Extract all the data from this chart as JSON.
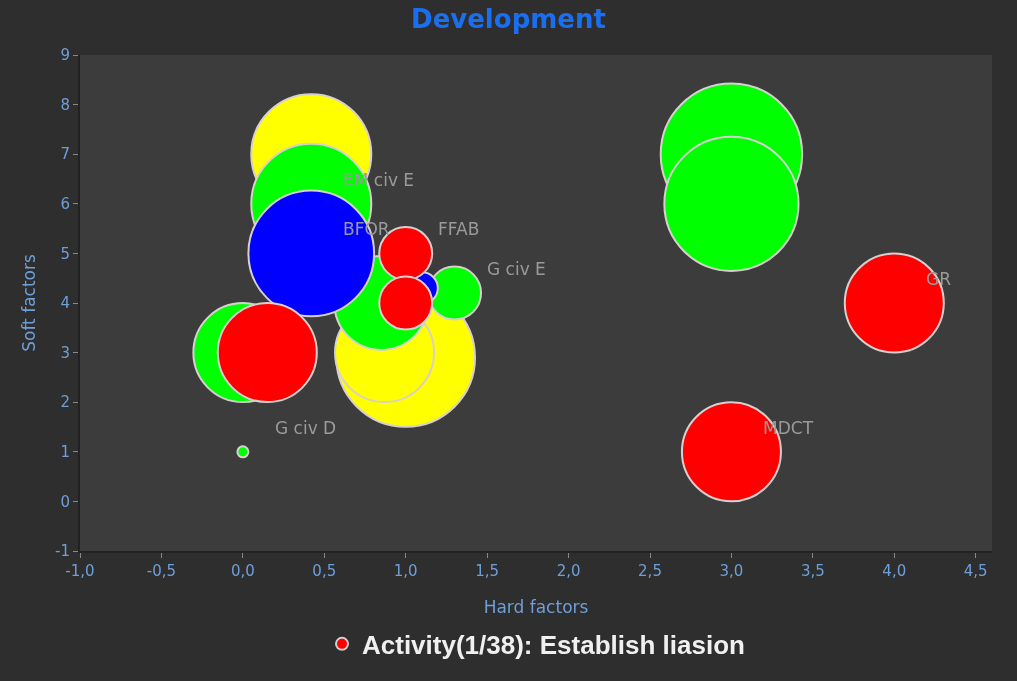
{
  "chart_data": {
    "type": "bubble",
    "title": "Development",
    "xlabel": "Hard factors",
    "ylabel": "Soft factors",
    "xlim": [
      -1,
      4.6
    ],
    "ylim": [
      -1,
      9
    ],
    "xticks": [
      {
        "value": -1,
        "label": "-1,0"
      },
      {
        "value": -0.5,
        "label": "-0,5"
      },
      {
        "value": 0,
        "label": "0,0"
      },
      {
        "value": 0.5,
        "label": "0,5"
      },
      {
        "value": 1,
        "label": "1,0"
      },
      {
        "value": 1.5,
        "label": "1,5"
      },
      {
        "value": 2,
        "label": "2,0"
      },
      {
        "value": 2.5,
        "label": "2,5"
      },
      {
        "value": 3,
        "label": "3,0"
      },
      {
        "value": 3.5,
        "label": "3,5"
      },
      {
        "value": 4,
        "label": "4,0"
      },
      {
        "value": 4.5,
        "label": "4,5"
      }
    ],
    "yticks": [
      -1,
      0,
      1,
      2,
      3,
      4,
      5,
      6,
      7,
      8,
      9
    ],
    "legend": "bottom",
    "series": [
      {
        "color": "#ffff00",
        "x": [
          1.0,
          0.42,
          0.87
        ],
        "values": [
          2.9,
          7,
          3
        ],
        "sizes": [
          0.96,
          0.72,
          0.49
        ]
      },
      {
        "color": "#00ff00",
        "x": [
          0.42,
          0.85,
          1.3,
          0,
          0,
          3,
          3
        ],
        "values": [
          6,
          4,
          4.2,
          3,
          1,
          7,
          6
        ],
        "sizes": [
          0.72,
          0.44,
          0.14,
          0.49,
          0.006,
          1,
          0.9
        ]
      },
      {
        "color": "#0000ff",
        "x": [
          0.42,
          1.1
        ],
        "values": [
          5,
          4.3
        ],
        "sizes": [
          0.79,
          0.05
        ]
      },
      {
        "name": "Activity(1/38): Establish liasion",
        "color": "#ff0000",
        "x": [
          1.0,
          1.0,
          0.15,
          4,
          3
        ],
        "values": [
          5,
          4,
          3,
          4,
          1
        ],
        "sizes": [
          0.14,
          0.14,
          0.49,
          0.49,
          0.49
        ]
      }
    ],
    "annotations": [
      {
        "text": "EM civ E",
        "x": 0.42,
        "y": 6
      },
      {
        "text": "BFOR",
        "x": 0.42,
        "y": 5
      },
      {
        "text": "FFAB",
        "x": 1.0,
        "y": 5
      },
      {
        "text": "G civ E",
        "x": 1.3,
        "y": 4.2
      },
      {
        "text": "G civ D",
        "x": 0,
        "y": 1
      },
      {
        "text": "MDCT",
        "x": 3,
        "y": 1
      },
      {
        "text": "GR",
        "x": 4,
        "y": 4
      }
    ]
  }
}
